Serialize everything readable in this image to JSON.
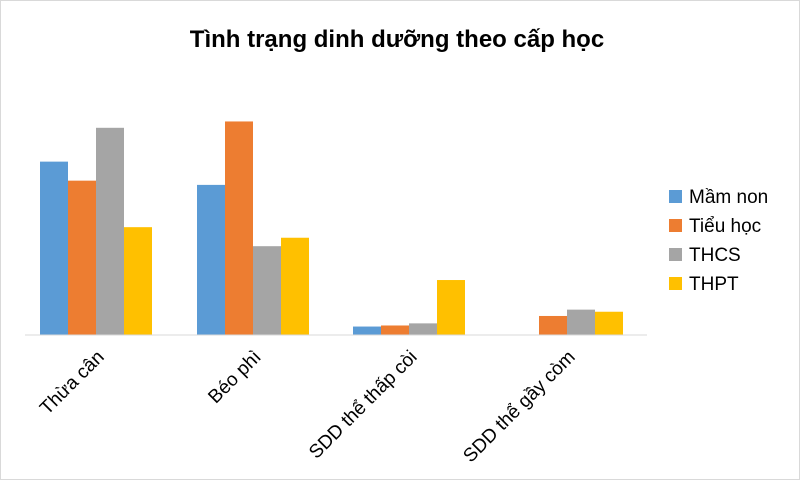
{
  "chart_data": {
    "type": "bar",
    "title": "Tình trạng dinh dưỡng theo cấp học",
    "xlabel": "",
    "ylabel": "",
    "categories": [
      "Thừa cân",
      "Béo phì",
      "SDD thể thấp còi",
      "SDD thể gầy còm"
    ],
    "series": [
      {
        "name": "Mầm non",
        "color": "#5B9BD5",
        "values": [
          8.2,
          7.1,
          0.4,
          0
        ]
      },
      {
        "name": "Tiểu học",
        "color": "#ED7D31",
        "values": [
          7.3,
          10.1,
          0.45,
          0.9
        ]
      },
      {
        "name": "THCS",
        "color": "#A5A5A5",
        "values": [
          9.8,
          4.2,
          0.55,
          1.2
        ]
      },
      {
        "name": "THPT",
        "color": "#FFC000",
        "values": [
          5.1,
          4.6,
          2.6,
          1.1
        ]
      }
    ],
    "ylim": [
      0,
      10.5
    ],
    "grid": false,
    "legend": "right"
  }
}
